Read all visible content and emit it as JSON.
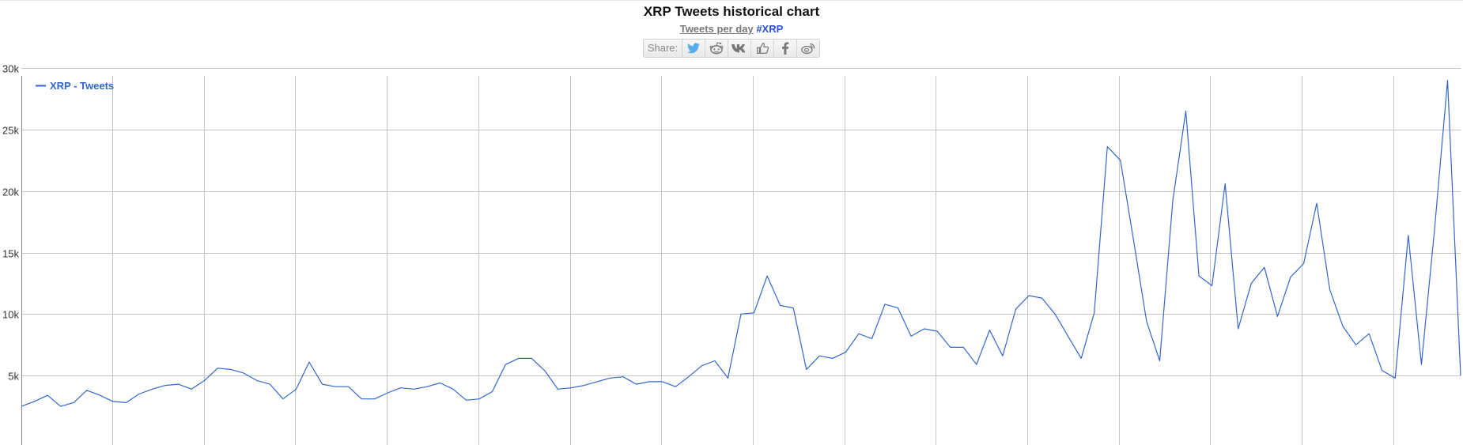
{
  "header": {
    "title": "XRP Tweets historical chart",
    "subtitle_text": "Tweets per day",
    "subtitle_hashtag": "#XRP",
    "share_label": "Share:",
    "share_buttons": [
      "twitter-icon",
      "reddit-icon",
      "vk-icon",
      "like-icon",
      "facebook-icon",
      "weibo-icon"
    ]
  },
  "colors": {
    "line": "#3366cc",
    "legend": "#3366cc",
    "grid": "#c4c4c4",
    "hashtag": "#2a4fd0",
    "twitter": "#55acee",
    "share_icon": "#777777"
  },
  "chart_data": {
    "type": "line",
    "title": "XRP Tweets historical chart",
    "subtitle": "Tweets per day",
    "xlabel": "",
    "ylabel": "",
    "ylim": [
      0,
      30000
    ],
    "yticks": [
      5000,
      10000,
      15000,
      20000,
      25000,
      30000
    ],
    "ytick_labels": [
      "5k",
      "10k",
      "15k",
      "20k",
      "25k",
      "30k"
    ],
    "vertical_gridlines": 16,
    "grid": true,
    "legend_position": "top-left",
    "series": [
      {
        "name": "XRP - Tweets",
        "values": [
          2500,
          2900,
          3400,
          2500,
          2800,
          3800,
          3400,
          2900,
          2800,
          3500,
          3900,
          4200,
          4300,
          3900,
          4600,
          5600,
          5500,
          5200,
          4600,
          4300,
          3100,
          3900,
          6100,
          4300,
          4100,
          4100,
          3100,
          3100,
          3600,
          4000,
          3900,
          4100,
          4400,
          3900,
          3000,
          3100,
          3700,
          5900,
          6400,
          6400,
          5400,
          3900,
          4000,
          4200,
          4500,
          4800,
          4900,
          4300,
          4500,
          4500,
          4100,
          4900,
          5800,
          6200,
          4800,
          10000,
          10100,
          13100,
          10700,
          10500,
          5500,
          6600,
          6400,
          6900,
          8400,
          8000,
          10800,
          10500,
          8200,
          8800,
          8600,
          7300,
          7300,
          5900,
          8700,
          6600,
          10400,
          11500,
          11300,
          10000,
          8200,
          6400,
          10100,
          23600,
          22500,
          16000,
          9400,
          6200,
          19200,
          26500,
          13100,
          12300,
          20600,
          8800,
          12500,
          13800,
          9800,
          13000,
          14100,
          19000,
          12000,
          9000,
          7500,
          8400,
          5400,
          4800,
          16400,
          5900,
          16800,
          29000,
          5000
        ]
      }
    ]
  }
}
